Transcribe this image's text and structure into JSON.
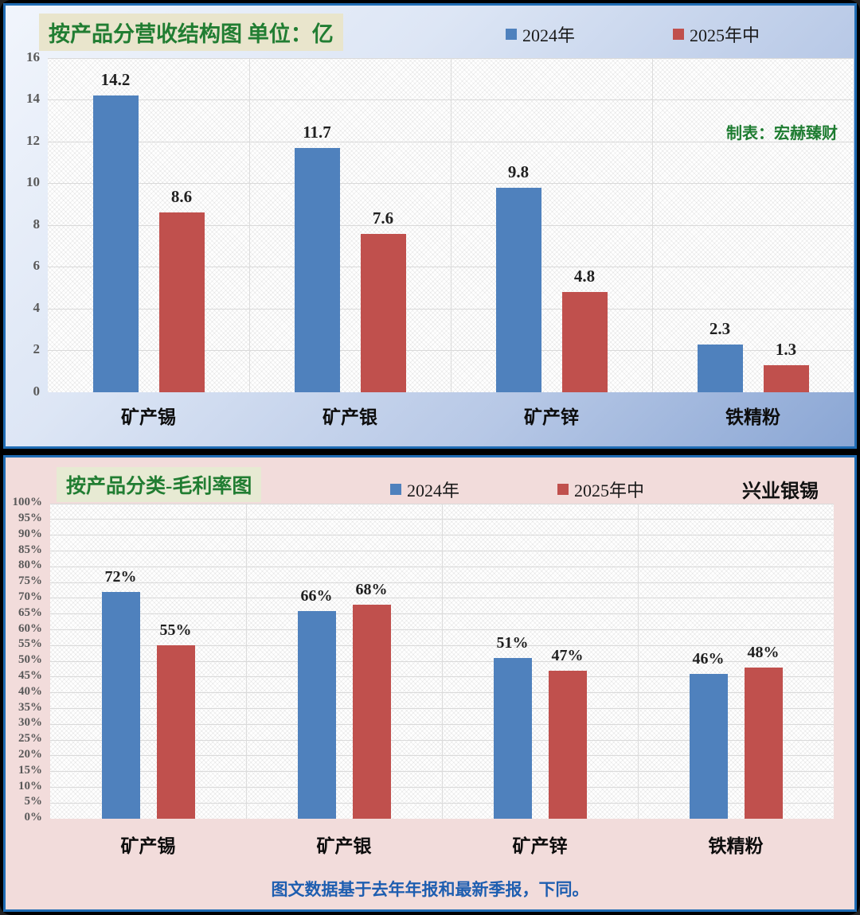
{
  "panel_revenue": {
    "title": "按产品分营收结构图 单位：亿",
    "credit": "制表：宏赫臻财",
    "legend": [
      {
        "label": "2024年"
      },
      {
        "label": "2025年中"
      }
    ]
  },
  "panel_margin": {
    "title": "按产品分类-毛利率图",
    "brand": "兴业银锡",
    "legend": [
      {
        "label": "2024年"
      },
      {
        "label": "2025年中"
      }
    ],
    "footnote": "图文数据基于去年年报和最新季报，下同。"
  },
  "colors": {
    "series_2024": "#4f81bd",
    "series_2025h": "#c0504d",
    "title_green": "#217d32",
    "footnote_blue": "#1e5eb0",
    "panel_border_blue": "#1f6cb4",
    "top_panel_bg": "#b7c8e6",
    "bottom_panel_bg": "#f2dcdb"
  },
  "chart_data": [
    {
      "id": "revenue",
      "type": "bar",
      "title": "按产品分营收结构图 单位：亿",
      "categories": [
        "矿产锡",
        "矿产银",
        "矿产锌",
        "铁精粉"
      ],
      "series": [
        {
          "name": "2024年",
          "color": "#4f81bd",
          "values": [
            14.2,
            11.7,
            9.8,
            2.3
          ]
        },
        {
          "name": "2025年中",
          "color": "#c0504d",
          "values": [
            8.6,
            7.6,
            4.8,
            1.3
          ]
        }
      ],
      "ylabel": "亿",
      "ylim": [
        0,
        16
      ],
      "ytick_step": 2,
      "ytick_suffix": "",
      "label_suffix": "",
      "grid": true,
      "legend_position": "top"
    },
    {
      "id": "margin",
      "type": "bar",
      "title": "按产品分类-毛利率图",
      "categories": [
        "矿产锡",
        "矿产银",
        "矿产锌",
        "铁精粉"
      ],
      "series": [
        {
          "name": "2024年",
          "color": "#4f81bd",
          "values": [
            72,
            66,
            51,
            46
          ]
        },
        {
          "name": "2025年中",
          "color": "#c0504d",
          "values": [
            55,
            68,
            47,
            48
          ]
        }
      ],
      "ylabel": "毛利率",
      "ylim": [
        0,
        100
      ],
      "ytick_step": 5,
      "ytick_suffix": "%",
      "label_suffix": "%",
      "grid": true,
      "legend_position": "top"
    }
  ]
}
